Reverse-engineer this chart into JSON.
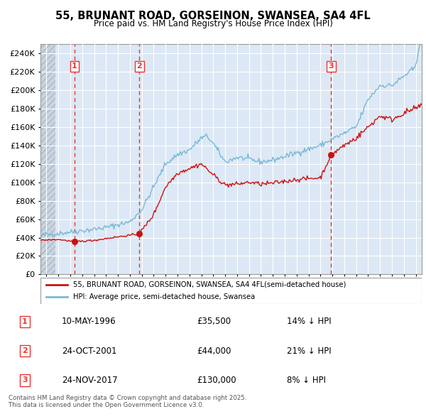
{
  "title": "55, BRUNANT ROAD, GORSEINON, SWANSEA, SA4 4FL",
  "subtitle": "Price paid vs. HM Land Registry's House Price Index (HPI)",
  "ylim": [
    0,
    250000
  ],
  "yticks": [
    0,
    20000,
    40000,
    60000,
    80000,
    100000,
    120000,
    140000,
    160000,
    180000,
    200000,
    220000,
    240000
  ],
  "plot_bg_color": "#dce8f5",
  "grid_color": "#ffffff",
  "hpi_line_color": "#7ab8d8",
  "price_line_color": "#cc1111",
  "sale_marker_color": "#cc1111",
  "vline_color": "#ee3333",
  "transactions": [
    {
      "num": 1,
      "date_label": "10-MAY-1996",
      "date_x": 1996.36,
      "price": 35500,
      "hpi_note": "14% ↓ HPI"
    },
    {
      "num": 2,
      "date_label": "24-OCT-2001",
      "date_x": 2001.81,
      "price": 44000,
      "hpi_note": "21% ↓ HPI"
    },
    {
      "num": 3,
      "date_label": "24-NOV-2017",
      "date_x": 2017.9,
      "price": 130000,
      "hpi_note": "8% ↓ HPI"
    }
  ],
  "legend_line1": "55, BRUNANT ROAD, GORSEINON, SWANSEA, SA4 4FL(semi-detached house)",
  "legend_line2": "HPI: Average price, semi-detached house, Swansea",
  "footnote": "Contains HM Land Registry data © Crown copyright and database right 2025.\nThis data is licensed under the Open Government Licence v3.0.",
  "xmin": 1993.5,
  "xmax": 2025.5,
  "hatch_end": 1995.0
}
